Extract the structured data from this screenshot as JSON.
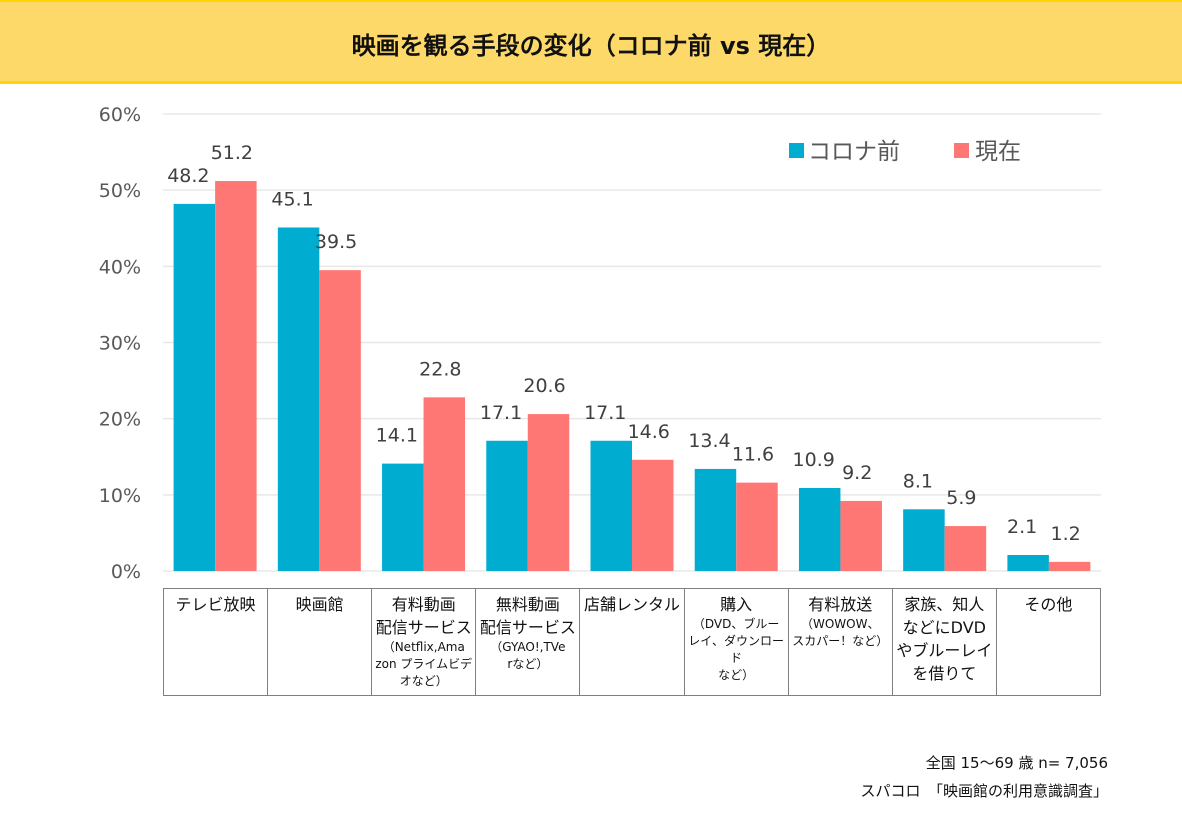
{
  "header": {
    "title": "映画を観る手段の変化（コロナ前 vs 現在）"
  },
  "colors": {
    "before": "#00acd0",
    "now": "#ff7774",
    "grid": "#e8e8e8",
    "header_bg": "#fdd96a",
    "header_border": "#ffd400"
  },
  "chart_data": {
    "type": "bar",
    "title": "映画を観る手段の変化（コロナ前 vs 現在）",
    "xlabel": "",
    "ylabel": "",
    "ylim": [
      0,
      60
    ],
    "yticks": [
      "0%",
      "10%",
      "20%",
      "30%",
      "40%",
      "50%",
      "60%"
    ],
    "grid": true,
    "legend_position": "top-right",
    "categories": [
      {
        "main": [
          "テレビ放映"
        ],
        "sub": []
      },
      {
        "main": [
          "映画館"
        ],
        "sub": []
      },
      {
        "main": [
          "有料動画",
          "配信サービス"
        ],
        "sub": [
          "（Netflix,Ama",
          "zon プライムビデ",
          "オなど）"
        ]
      },
      {
        "main": [
          "無料動画",
          "配信サービス"
        ],
        "sub": [
          "（GYAO!,TVe",
          "rなど）"
        ]
      },
      {
        "main": [
          "店舗レンタル"
        ],
        "sub": []
      },
      {
        "main": [
          "購入"
        ],
        "sub": [
          "（DVD、ブルー",
          "レイ、ダウンロード",
          "など）"
        ]
      },
      {
        "main": [
          "有料放送"
        ],
        "sub": [
          "（WOWOW、",
          "スカパー！など）"
        ]
      },
      {
        "main": [
          "家族、知人",
          "などにDVD",
          "やブルーレイ",
          "を借りて"
        ],
        "sub": []
      },
      {
        "main": [
          "その他"
        ],
        "sub": []
      }
    ],
    "series": [
      {
        "name": "コロナ前",
        "values": [
          48.2,
          45.1,
          14.1,
          17.1,
          17.1,
          13.4,
          10.9,
          8.1,
          2.1
        ]
      },
      {
        "name": "現在",
        "values": [
          51.2,
          39.5,
          22.8,
          20.6,
          14.6,
          11.6,
          9.2,
          5.9,
          1.2
        ]
      }
    ]
  },
  "footer": {
    "sample": "全国  15～69 歳  n=  7,056",
    "source": "スパコロ　「映画館の利用意識調査」"
  }
}
